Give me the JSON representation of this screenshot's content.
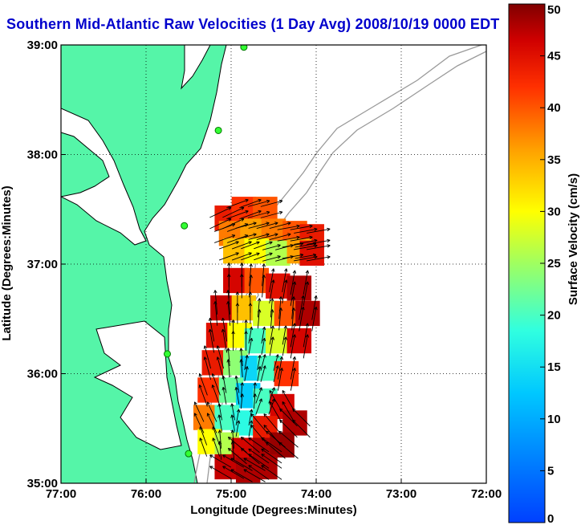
{
  "chart_data": {
    "type": "heatmap",
    "title": "Southern Mid-Atlantic Raw Velocities (1 Day Avg) 2008/10/19 0000 EDT",
    "xlabel": "Longitude (Degrees:Minutes)",
    "ylabel": "Latitude (Degrees:Minutes)",
    "colorbar_label": "Surface Velocity (cm/s)",
    "xlim": [
      -77,
      -72
    ],
    "ylim": [
      35,
      39
    ],
    "x_ticks": [
      {
        "value": -77,
        "label": "77:00"
      },
      {
        "value": -76,
        "label": "76:00"
      },
      {
        "value": -75,
        "label": "75:00"
      },
      {
        "value": -74,
        "label": "74:00"
      },
      {
        "value": -73,
        "label": "73:00"
      },
      {
        "value": -72,
        "label": "72:00"
      }
    ],
    "y_ticks": [
      {
        "value": 35,
        "label": "35:00"
      },
      {
        "value": 36,
        "label": "36:00"
      },
      {
        "value": 37,
        "label": "37:00"
      },
      {
        "value": 38,
        "label": "38:00"
      },
      {
        "value": 39,
        "label": "39:00"
      }
    ],
    "colorbar_range": [
      0,
      50
    ],
    "colorbar_ticks": [
      0,
      5,
      10,
      15,
      20,
      25,
      30,
      35,
      40,
      45,
      50
    ],
    "grid": true,
    "gridline_style": "dotted",
    "colormap": "jet",
    "land_color": "#55f5a8",
    "coastline_color": "#000000",
    "bathymetry_color": "#9a9a9a",
    "arrow_color": "#000000",
    "stations": [
      {
        "lon": -74.85,
        "lat": 38.98
      },
      {
        "lon": -75.15,
        "lat": 38.22
      },
      {
        "lon": -75.55,
        "lat": 37.35
      },
      {
        "lon": -75.75,
        "lat": 36.18
      },
      {
        "lon": -75.5,
        "lat": 35.27
      }
    ],
    "field_north": [
      {
        "lon": -75.05,
        "lat": 37.42,
        "v": 44,
        "dir": 25
      },
      {
        "lon": -74.85,
        "lat": 37.5,
        "v": 42,
        "dir": 20
      },
      {
        "lon": -74.6,
        "lat": 37.5,
        "v": 40,
        "dir": 15
      },
      {
        "lon": -75.0,
        "lat": 37.28,
        "v": 38,
        "dir": 20
      },
      {
        "lon": -74.75,
        "lat": 37.3,
        "v": 36,
        "dir": 15
      },
      {
        "lon": -74.5,
        "lat": 37.3,
        "v": 38,
        "dir": 15
      },
      {
        "lon": -74.25,
        "lat": 37.28,
        "v": 40,
        "dir": 10
      },
      {
        "lon": -74.05,
        "lat": 37.25,
        "v": 44,
        "dir": 10
      },
      {
        "lon": -74.95,
        "lat": 37.12,
        "v": 34,
        "dir": 20
      },
      {
        "lon": -74.7,
        "lat": 37.12,
        "v": 30,
        "dir": 20
      },
      {
        "lon": -74.45,
        "lat": 37.1,
        "v": 26,
        "dir": 15
      },
      {
        "lon": -74.2,
        "lat": 37.12,
        "v": 36,
        "dir": 10
      },
      {
        "lon": -74.05,
        "lat": 37.1,
        "v": 45,
        "dir": 10
      }
    ],
    "field_south": [
      {
        "lon": -74.95,
        "lat": 36.85,
        "v": 46,
        "dir": 90
      },
      {
        "lon": -74.7,
        "lat": 36.85,
        "v": 40,
        "dir": 85
      },
      {
        "lon": -74.45,
        "lat": 36.8,
        "v": 45,
        "dir": 80
      },
      {
        "lon": -74.2,
        "lat": 36.78,
        "v": 48,
        "dir": 80
      },
      {
        "lon": -75.1,
        "lat": 36.6,
        "v": 47,
        "dir": 95
      },
      {
        "lon": -74.85,
        "lat": 36.6,
        "v": 34,
        "dir": 90
      },
      {
        "lon": -74.6,
        "lat": 36.55,
        "v": 28,
        "dir": 85
      },
      {
        "lon": -74.35,
        "lat": 36.55,
        "v": 40,
        "dir": 85
      },
      {
        "lon": -74.1,
        "lat": 36.55,
        "v": 48,
        "dir": 80
      },
      {
        "lon": -75.15,
        "lat": 36.35,
        "v": 45,
        "dir": 100
      },
      {
        "lon": -74.9,
        "lat": 36.35,
        "v": 30,
        "dir": 90
      },
      {
        "lon": -74.7,
        "lat": 36.3,
        "v": 20,
        "dir": 80
      },
      {
        "lon": -74.45,
        "lat": 36.3,
        "v": 28,
        "dir": 80
      },
      {
        "lon": -74.2,
        "lat": 36.3,
        "v": 46,
        "dir": 80
      },
      {
        "lon": -75.2,
        "lat": 36.1,
        "v": 44,
        "dir": 105
      },
      {
        "lon": -74.95,
        "lat": 36.1,
        "v": 24,
        "dir": 95
      },
      {
        "lon": -74.75,
        "lat": 36.05,
        "v": 14,
        "dir": 80
      },
      {
        "lon": -74.55,
        "lat": 36.05,
        "v": 20,
        "dir": 75
      },
      {
        "lon": -74.35,
        "lat": 36.0,
        "v": 42,
        "dir": 80
      },
      {
        "lon": -75.25,
        "lat": 35.85,
        "v": 42,
        "dir": 110
      },
      {
        "lon": -75.0,
        "lat": 35.85,
        "v": 22,
        "dir": 100
      },
      {
        "lon": -74.8,
        "lat": 35.8,
        "v": 13,
        "dir": 85
      },
      {
        "lon": -74.6,
        "lat": 35.75,
        "v": 20,
        "dir": 70
      },
      {
        "lon": -74.4,
        "lat": 35.7,
        "v": 46,
        "dir": 120
      },
      {
        "lon": -75.3,
        "lat": 35.6,
        "v": 38,
        "dir": 115
      },
      {
        "lon": -75.05,
        "lat": 35.6,
        "v": 20,
        "dir": 100
      },
      {
        "lon": -74.85,
        "lat": 35.55,
        "v": 18,
        "dir": 80
      },
      {
        "lon": -74.6,
        "lat": 35.5,
        "v": 44,
        "dir": 130
      },
      {
        "lon": -74.25,
        "lat": 35.55,
        "v": 48,
        "dir": 135
      },
      {
        "lon": -75.25,
        "lat": 35.38,
        "v": 30,
        "dir": 110
      },
      {
        "lon": -75.05,
        "lat": 35.35,
        "v": 26,
        "dir": 95
      },
      {
        "lon": -74.85,
        "lat": 35.3,
        "v": 46,
        "dir": 140
      },
      {
        "lon": -74.6,
        "lat": 35.3,
        "v": 48,
        "dir": 145
      },
      {
        "lon": -74.4,
        "lat": 35.35,
        "v": 49,
        "dir": 140
      },
      {
        "lon": -75.05,
        "lat": 35.15,
        "v": 47,
        "dir": 150
      },
      {
        "lon": -74.8,
        "lat": 35.12,
        "v": 48,
        "dir": 150
      },
      {
        "lon": -74.6,
        "lat": 35.15,
        "v": 48,
        "dir": 145
      }
    ]
  }
}
